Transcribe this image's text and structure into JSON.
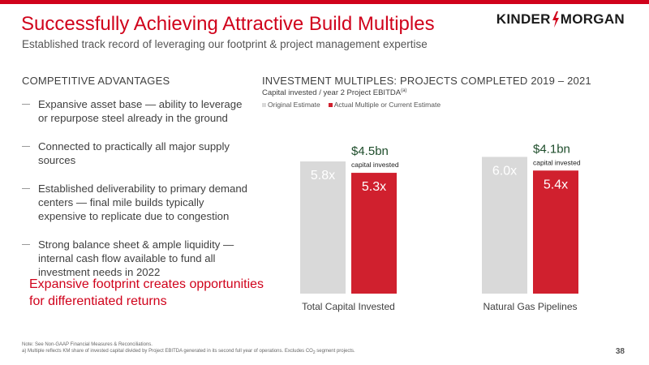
{
  "header": {
    "title": "Successfully Achieving Attractive Build Multiples",
    "subtitle": "Established track record of leveraging our footprint & project management expertise",
    "logo_text_left": "KINDER",
    "logo_text_right": "MORGAN"
  },
  "left": {
    "heading": "COMPETITIVE ADVANTAGES",
    "items": [
      "Expansive asset base — ability to leverage or repurpose steel already in the ground",
      "Connected to practically all major supply sources",
      "Established deliverability to primary demand centers — final mile builds typically expensive to replicate due to congestion",
      "Strong balance sheet & ample liquidity — internal cash flow available to fund all investment needs in 2022"
    ],
    "callout": "Expansive footprint creates opportunities for differentiated returns"
  },
  "right": {
    "heading": "INVESTMENT MULTIPLES:  PROJECTS COMPLETED 2019 – 2021",
    "sub_text": "Capital invested / year 2 Project EBITDA",
    "sub_sup": "(a)"
  },
  "chart_data": {
    "type": "bar",
    "categories": [
      "Total Capital Invested",
      "Natural Gas Pipelines"
    ],
    "series": [
      {
        "name": "Original Estimate",
        "values": [
          5.8,
          6.0
        ],
        "color": "#d9d9d9",
        "labels": [
          "5.8x",
          "6.0x"
        ]
      },
      {
        "name": "Actual Multiple or Current Estimate",
        "values": [
          5.3,
          5.4
        ],
        "color": "#d0202e",
        "labels": [
          "5.3x",
          "5.4x"
        ]
      }
    ],
    "annotations": [
      {
        "category": "Total Capital Invested",
        "amount": "$4.5bn",
        "note": "capital invested"
      },
      {
        "category": "Natural Gas Pipelines",
        "amount": "$4.1bn",
        "note": "capital invested"
      }
    ],
    "legend_position": "top-left",
    "grid": false
  },
  "footer": {
    "note1": "Note:  See Non-GAAP Financial Measures & Reconciliations.",
    "note2_a": "a)   Multiple reflects KM share of invested capital divided by Project EBITDA generated in its second full year of operations. Excludes CO",
    "note2_sub": "2",
    "note2_b": " segment projects.",
    "page_number": "38"
  },
  "colors": {
    "accent": "#d0021b",
    "annotation_green": "#1e4d2b"
  }
}
